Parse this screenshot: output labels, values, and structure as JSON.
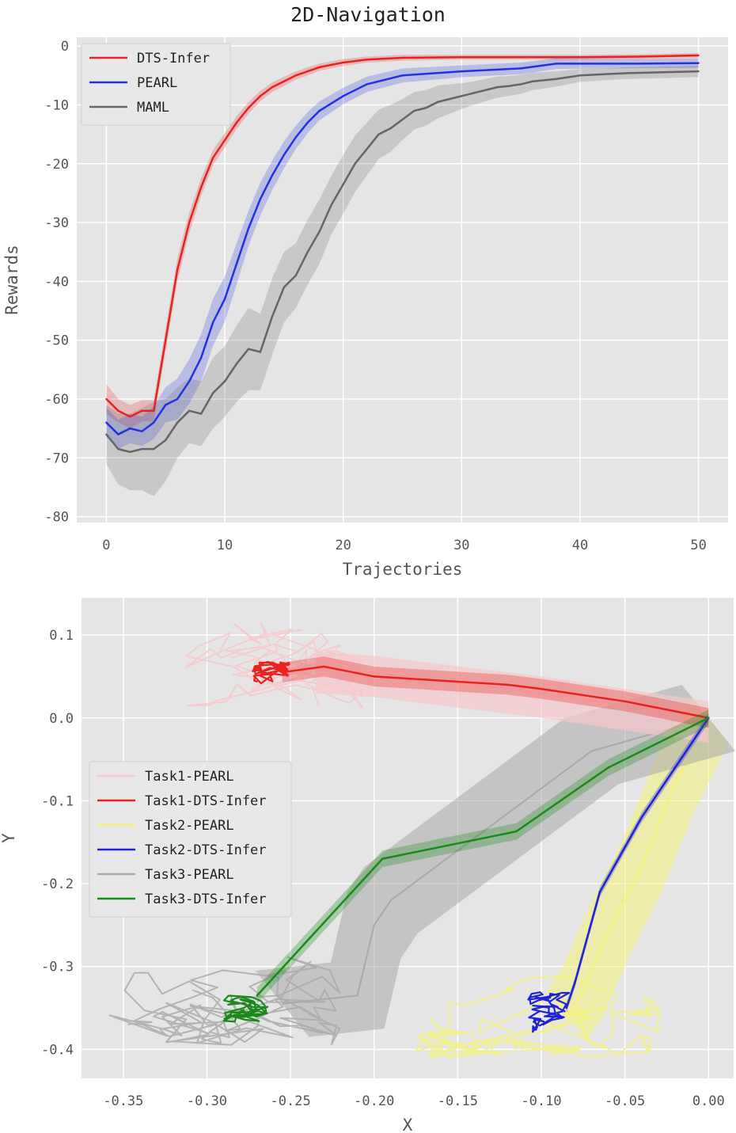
{
  "chart_data": [
    {
      "type": "line",
      "title": "2D-Navigation",
      "xlabel": "Trajectories",
      "ylabel": "Rewards",
      "xlim": [
        -2.5,
        52.5
      ],
      "ylim": [
        -81,
        1.5
      ],
      "xticks": [
        0,
        10,
        20,
        30,
        40,
        50
      ],
      "yticks": [
        0,
        -10,
        -20,
        -30,
        -40,
        -50,
        -60,
        -70,
        -80
      ],
      "grid": true,
      "legend": "top-left",
      "series": [
        {
          "name": "DTS-Infer",
          "color": "#e8221e",
          "x": [
            0,
            1,
            2,
            3,
            4,
            5,
            6,
            7,
            8,
            9,
            10,
            11,
            12,
            13,
            14,
            15,
            16,
            17,
            18,
            20,
            22,
            25,
            30,
            35,
            40,
            45,
            50
          ],
          "y": [
            -60,
            -62,
            -63,
            -62,
            -62,
            -50,
            -38,
            -30,
            -24,
            -19,
            -16,
            -13,
            -10.5,
            -8.5,
            -7,
            -6,
            -5,
            -4.3,
            -3.6,
            -2.8,
            -2.3,
            -2,
            -1.9,
            -1.9,
            -1.9,
            -1.8,
            -1.6
          ],
          "band": [
            2.5,
            2,
            2,
            1.8,
            1.8,
            2,
            2,
            1.8,
            1.5,
            1.3,
            1.2,
            1.1,
            1,
            0.9,
            0.8,
            0.8,
            0.7,
            0.7,
            0.6,
            0.6,
            0.5,
            0.5,
            0.4,
            0.4,
            0.4,
            0.4,
            0.4
          ]
        },
        {
          "name": "PEARL",
          "color": "#2233dd",
          "x": [
            0,
            1,
            2,
            3,
            4,
            5,
            6,
            7,
            8,
            9,
            10,
            11,
            12,
            13,
            14,
            15,
            16,
            17,
            18,
            20,
            22,
            25,
            30,
            35,
            38,
            42,
            45,
            50
          ],
          "y": [
            -64,
            -66,
            -65,
            -65.5,
            -64,
            -61,
            -60,
            -57,
            -53,
            -47,
            -43,
            -37,
            -31,
            -26,
            -22,
            -18.5,
            -15.5,
            -13,
            -11,
            -8.5,
            -6.5,
            -5,
            -4.3,
            -3.8,
            -3,
            -3,
            -3,
            -2.9
          ],
          "band": [
            2.5,
            2.5,
            2.5,
            2.5,
            2.8,
            3,
            3.5,
            3.8,
            4,
            4,
            3.8,
            3.5,
            3,
            2.8,
            2.5,
            2.3,
            2,
            1.8,
            1.6,
            1.4,
            1.3,
            1.2,
            1,
            1,
            0.9,
            0.8,
            0.8,
            0.8
          ]
        },
        {
          "name": "MAML",
          "color": "#666666",
          "x": [
            0,
            1,
            2,
            3,
            4,
            5,
            6,
            7,
            8,
            9,
            10,
            11,
            12,
            13,
            14,
            15,
            16,
            17,
            18,
            19,
            20,
            21,
            22,
            23,
            24,
            25,
            26,
            27,
            28,
            29,
            30,
            31,
            32,
            33,
            34,
            35,
            36,
            37,
            38,
            39,
            40,
            42,
            44,
            46,
            48,
            50
          ],
          "y": [
            -66,
            -68.5,
            -69,
            -68.5,
            -68.5,
            -67,
            -64,
            -62,
            -62.5,
            -59,
            -57,
            -54,
            -51.5,
            -52,
            -46,
            -41,
            -39,
            -35,
            -31.5,
            -27,
            -23.5,
            -20,
            -17.5,
            -15,
            -14,
            -12.5,
            -11,
            -10.5,
            -9.5,
            -9,
            -8.5,
            -8,
            -7.5,
            -7,
            -6.8,
            -6.5,
            -6,
            -5.8,
            -5.6,
            -5.3,
            -5,
            -4.8,
            -4.6,
            -4.5,
            -4.4,
            -4.3
          ],
          "band": [
            5,
            6,
            6.5,
            7,
            8,
            7,
            6,
            5.5,
            5.5,
            6,
            6,
            6.5,
            7,
            6.5,
            6.5,
            6,
            5.5,
            5.5,
            5.5,
            5,
            5,
            4.8,
            4.5,
            4.2,
            4,
            3.5,
            3.2,
            3,
            2.8,
            2.5,
            2.2,
            2,
            1.9,
            1.8,
            1.7,
            1.6,
            1.5,
            1.4,
            1.3,
            1.2,
            1.1,
            1,
            1,
            1,
            1,
            1
          ]
        }
      ]
    },
    {
      "type": "line",
      "title": "",
      "xlabel": "X",
      "ylabel": "Y",
      "xlim": [
        -0.375,
        0.015
      ],
      "ylim": [
        -0.435,
        0.145
      ],
      "xticks": [
        -0.35,
        -0.3,
        -0.25,
        -0.2,
        -0.15,
        -0.1,
        -0.05,
        0.0
      ],
      "xticklabels": [
        "-0.35",
        "-0.30",
        "-0.25",
        "-0.20",
        "-0.15",
        "-0.10",
        "-0.05",
        "0.00"
      ],
      "yticks": [
        0.1,
        0.0,
        -0.1,
        -0.2,
        -0.3,
        -0.4
      ],
      "yticklabels": [
        "0.1",
        "0.0",
        "-0.1",
        "-0.2",
        "-0.3",
        "-0.4"
      ],
      "grid": true,
      "legend": "center-left",
      "series": [
        {
          "name": "Task1-PEARL",
          "color": "#f7c8cc",
          "path_x": [
            0,
            -0.1,
            -0.2,
            -0.235
          ],
          "path_y": [
            0,
            0.03,
            0.055,
            0.06
          ],
          "cluster": {
            "cx": -0.26,
            "cy": 0.06,
            "rx": 0.055,
            "ry": 0.055,
            "seed": 11,
            "n": 120,
            "step": 0.03
          }
        },
        {
          "name": "Task1-DTS-Infer",
          "color": "#e8221e",
          "path_x": [
            0,
            -0.05,
            -0.1,
            -0.12,
            -0.2,
            -0.23,
            -0.255
          ],
          "path_y": [
            0,
            0.02,
            0.035,
            0.04,
            0.05,
            0.062,
            0.055
          ],
          "band": 0.012,
          "cluster": {
            "cx": -0.261,
            "cy": 0.048,
            "rx": 0.012,
            "ry": 0.02,
            "seed": 3,
            "n": 55,
            "step": 0.012
          }
        },
        {
          "name": "Task2-PEARL",
          "color": "#f5f27a",
          "path_x": [
            0,
            -0.02,
            -0.04,
            -0.06,
            -0.075,
            -0.085
          ],
          "path_y": [
            0,
            -0.08,
            -0.18,
            -0.26,
            -0.33,
            -0.36
          ],
          "band": 0.03,
          "cluster": {
            "cx": -0.1,
            "cy": -0.36,
            "rx": 0.075,
            "ry": 0.05,
            "seed": 7,
            "n": 110,
            "step": 0.03
          }
        },
        {
          "name": "Task2-DTS-Infer",
          "color": "#1f22d8",
          "path_x": [
            0,
            -0.02,
            -0.04,
            -0.065,
            -0.08,
            -0.085
          ],
          "path_y": [
            0,
            -0.06,
            -0.12,
            -0.21,
            -0.32,
            -0.35
          ],
          "band": 0.006,
          "cluster": {
            "cx": -0.095,
            "cy": -0.355,
            "rx": 0.013,
            "ry": 0.025,
            "seed": 5,
            "n": 55,
            "step": 0.012
          }
        },
        {
          "name": "Task3-PEARL",
          "color": "#aaaaaa",
          "path_x": [
            0,
            -0.07,
            -0.11,
            -0.19,
            -0.2,
            -0.21,
            -0.255
          ],
          "path_y": [
            0,
            -0.04,
            -0.1,
            -0.22,
            -0.25,
            -0.335,
            -0.345
          ],
          "band": 0.04,
          "cluster": {
            "cx": -0.29,
            "cy": -0.34,
            "rx": 0.07,
            "ry": 0.055,
            "seed": 9,
            "n": 110,
            "step": 0.035
          }
        },
        {
          "name": "Task3-DTS-Infer",
          "color": "#1a8a1a",
          "path_x": [
            0,
            -0.06,
            -0.115,
            -0.195,
            -0.245,
            -0.27
          ],
          "path_y": [
            0,
            -0.06,
            -0.137,
            -0.17,
            -0.28,
            -0.335
          ],
          "band": 0.01,
          "cluster": {
            "cx": -0.276,
            "cy": -0.352,
            "rx": 0.016,
            "ry": 0.018,
            "seed": 13,
            "n": 55,
            "step": 0.012
          }
        }
      ]
    }
  ]
}
